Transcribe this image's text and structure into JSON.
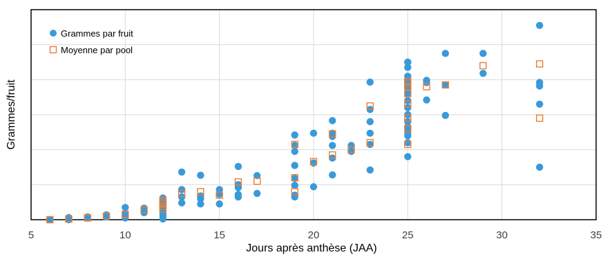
{
  "chart_data": {
    "type": "scatter",
    "title": "",
    "xlabel": "Jours après anthèse (JAA)",
    "ylabel": "Grammes/fruit",
    "xlim": [
      5,
      35
    ],
    "x_ticks": [
      5,
      10,
      15,
      20,
      25,
      30,
      35
    ],
    "ylim": [
      0,
      6
    ],
    "y_grid_lines": [
      0,
      1,
      2,
      3,
      4,
      5,
      6
    ],
    "y_tick_labels_shown": false,
    "grid": true,
    "legend_position": "top-left",
    "series": [
      {
        "name": "Grammes par fruit",
        "marker": "filled-circle",
        "color": "#3A9AD9",
        "points": [
          [
            6,
            0.0
          ],
          [
            7,
            0.0
          ],
          [
            7,
            0.06
          ],
          [
            8,
            0.05
          ],
          [
            8,
            0.08
          ],
          [
            9,
            0.08
          ],
          [
            9,
            0.14
          ],
          [
            10,
            0.05
          ],
          [
            10,
            0.12
          ],
          [
            10,
            0.18
          ],
          [
            10,
            0.35
          ],
          [
            11,
            0.2
          ],
          [
            11,
            0.28
          ],
          [
            11,
            0.33
          ],
          [
            12,
            0.02
          ],
          [
            12,
            0.1
          ],
          [
            12,
            0.17
          ],
          [
            12,
            0.25
          ],
          [
            12,
            0.35
          ],
          [
            12,
            0.5
          ],
          [
            12,
            0.62
          ],
          [
            13,
            0.48
          ],
          [
            13,
            0.65
          ],
          [
            13,
            0.86
          ],
          [
            13,
            1.36
          ],
          [
            14,
            0.45
          ],
          [
            14,
            0.6
          ],
          [
            14,
            0.68
          ],
          [
            14,
            1.27
          ],
          [
            15,
            0.45
          ],
          [
            15,
            0.73
          ],
          [
            15,
            0.86
          ],
          [
            16,
            0.65
          ],
          [
            16,
            0.72
          ],
          [
            16,
            0.92
          ],
          [
            16,
            1.0
          ],
          [
            16,
            1.52
          ],
          [
            17,
            0.75
          ],
          [
            17,
            1.26
          ],
          [
            19,
            0.65
          ],
          [
            19,
            0.7
          ],
          [
            19,
            0.98
          ],
          [
            19,
            1.18
          ],
          [
            19,
            1.55
          ],
          [
            19,
            1.95
          ],
          [
            19,
            2.12
          ],
          [
            19,
            2.42
          ],
          [
            20,
            0.94
          ],
          [
            20,
            1.62
          ],
          [
            20,
            2.47
          ],
          [
            21,
            1.28
          ],
          [
            21,
            1.76
          ],
          [
            21,
            2.12
          ],
          [
            21,
            2.38
          ],
          [
            21,
            2.47
          ],
          [
            21,
            2.83
          ],
          [
            22,
            1.95
          ],
          [
            22,
            2.12
          ],
          [
            23,
            1.42
          ],
          [
            23,
            2.15
          ],
          [
            23,
            2.47
          ],
          [
            23,
            2.8
          ],
          [
            23,
            3.15
          ],
          [
            23,
            3.93
          ],
          [
            25,
            1.8
          ],
          [
            25,
            2.2
          ],
          [
            25,
            2.4
          ],
          [
            25,
            2.5
          ],
          [
            25,
            2.65
          ],
          [
            25,
            2.8
          ],
          [
            25,
            3.0
          ],
          [
            25,
            3.2
          ],
          [
            25,
            3.4
          ],
          [
            25,
            3.6
          ],
          [
            25,
            3.8
          ],
          [
            25,
            3.95
          ],
          [
            25,
            4.1
          ],
          [
            25,
            4.35
          ],
          [
            25,
            4.5
          ],
          [
            25,
            4.5
          ],
          [
            26,
            3.42
          ],
          [
            26,
            3.92
          ],
          [
            26,
            3.98
          ],
          [
            27,
            2.98
          ],
          [
            27,
            3.85
          ],
          [
            27,
            4.75
          ],
          [
            29,
            4.18
          ],
          [
            29,
            4.75
          ],
          [
            32,
            1.5
          ],
          [
            32,
            3.3
          ],
          [
            32,
            3.82
          ],
          [
            32,
            3.92
          ],
          [
            32,
            5.55
          ]
        ]
      },
      {
        "name": "Moyenne par pool",
        "marker": "open-square",
        "color": "#ED7D31",
        "points": [
          [
            6,
            0.0
          ],
          [
            7,
            0.02
          ],
          [
            8,
            0.05
          ],
          [
            9,
            0.1
          ],
          [
            10,
            0.15
          ],
          [
            11,
            0.28
          ],
          [
            12,
            0.3
          ],
          [
            12,
            0.38
          ],
          [
            12,
            0.45
          ],
          [
            12,
            0.5
          ],
          [
            12,
            0.55
          ],
          [
            13,
            0.75
          ],
          [
            14,
            0.8
          ],
          [
            15,
            0.7
          ],
          [
            16,
            1.08
          ],
          [
            17,
            1.1
          ],
          [
            19,
            0.8
          ],
          [
            19,
            1.2
          ],
          [
            19,
            2.15
          ],
          [
            20,
            1.66
          ],
          [
            21,
            1.85
          ],
          [
            21,
            2.45
          ],
          [
            22,
            2.0
          ],
          [
            23,
            2.2
          ],
          [
            23,
            3.25
          ],
          [
            25,
            2.15
          ],
          [
            25,
            2.6
          ],
          [
            25,
            2.9
          ],
          [
            25,
            3.3
          ],
          [
            25,
            3.6
          ],
          [
            25,
            3.8
          ],
          [
            25,
            3.9
          ],
          [
            25,
            3.95
          ],
          [
            26,
            3.8
          ],
          [
            27,
            3.85
          ],
          [
            29,
            4.4
          ],
          [
            32,
            2.9
          ],
          [
            32,
            4.45
          ]
        ]
      }
    ]
  }
}
